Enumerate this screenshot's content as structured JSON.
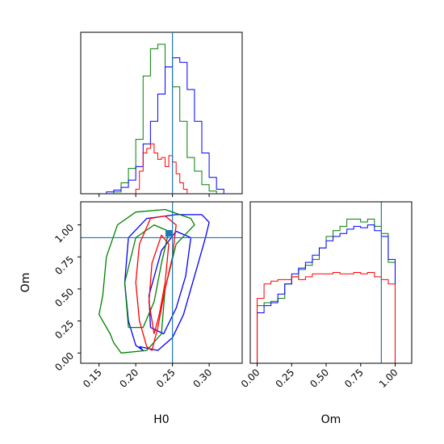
{
  "chart_data": {
    "type": "corner",
    "parameters": [
      "H0",
      "Om"
    ],
    "truth": {
      "H0": 0.25,
      "Om": 0.9
    },
    "colors": {
      "blue": "#0000ff",
      "green": "#008000",
      "red": "#ff0000",
      "truth": "#1f77b4"
    },
    "panels": {
      "h0_hist": {
        "xlim": [
          0.125,
          0.345
        ],
        "series": [
          {
            "color": "green",
            "bins": [
              0.17,
              0.18,
              0.19,
              0.2,
              0.21,
              0.22,
              0.23,
              0.24,
              0.25,
              0.26,
              0.27,
              0.28,
              0.29,
              0.3
            ],
            "heights": [
              2,
              12,
              28,
              60,
              130,
              160,
              165,
              140,
              118,
              80,
              40,
              25,
              10,
              3
            ]
          },
          {
            "color": "blue",
            "bins": [
              0.16,
              0.17,
              0.18,
              0.19,
              0.2,
              0.21,
              0.22,
              0.23,
              0.24,
              0.25,
              0.26,
              0.27,
              0.28,
              0.29,
              0.3,
              0.31
            ],
            "heights": [
              2,
              4,
              7,
              15,
              30,
              55,
              80,
              110,
              140,
              150,
              145,
              115,
              80,
              45,
              18,
              5
            ]
          },
          {
            "color": "red",
            "bins": [
              0.2,
              0.205,
              0.21,
              0.215,
              0.22,
              0.225,
              0.23,
              0.235,
              0.24,
              0.245,
              0.25,
              0.255,
              0.26,
              0.265
            ],
            "heights": [
              5,
              25,
              45,
              50,
              55,
              45,
              38,
              40,
              30,
              42,
              35,
              22,
              12,
              5
            ]
          }
        ]
      },
      "om_hist": {
        "xlim": [
          -0.05,
          1.12
        ],
        "xticks": [
          0.0,
          0.25,
          0.5,
          0.75,
          1.0
        ],
        "xticklabels": [
          "0.00",
          "0.25",
          "0.50",
          "0.75",
          "1.00"
        ],
        "xlabel": "Om",
        "series": [
          {
            "color": "green",
            "edges": [
              0,
              0.05,
              0.1,
              0.15,
              0.2,
              0.25,
              0.3,
              0.35,
              0.4,
              0.45,
              0.5,
              0.55,
              0.6,
              0.65,
              0.7,
              0.75,
              0.8,
              0.85,
              0.9,
              0.95,
              1.0
            ],
            "heights": [
              0.4,
              0.42,
              0.43,
              0.45,
              0.55,
              0.6,
              0.65,
              0.68,
              0.72,
              0.8,
              0.88,
              0.92,
              0.95,
              1.0,
              1.0,
              0.98,
              1.0,
              0.95,
              0.9,
              0.7
            ]
          },
          {
            "color": "blue",
            "edges": [
              0,
              0.05,
              0.1,
              0.15,
              0.2,
              0.25,
              0.3,
              0.35,
              0.4,
              0.45,
              0.5,
              0.55,
              0.6,
              0.65,
              0.7,
              0.75,
              0.8,
              0.85,
              0.9,
              0.95,
              1.0
            ],
            "heights": [
              0.35,
              0.4,
              0.42,
              0.48,
              0.55,
              0.62,
              0.66,
              0.7,
              0.75,
              0.8,
              0.85,
              0.88,
              0.9,
              0.93,
              0.95,
              0.94,
              0.96,
              0.92,
              0.88,
              0.72
            ]
          },
          {
            "color": "red",
            "edges": [
              0,
              0.05,
              0.1,
              0.15,
              0.2,
              0.25,
              0.3,
              0.35,
              0.4,
              0.45,
              0.5,
              0.55,
              0.6,
              0.65,
              0.7,
              0.75,
              0.8,
              0.85,
              0.9,
              0.95,
              1.0
            ],
            "heights": [
              0.45,
              0.55,
              0.57,
              0.58,
              0.58,
              0.6,
              0.58,
              0.6,
              0.62,
              0.62,
              0.62,
              0.63,
              0.62,
              0.62,
              0.63,
              0.62,
              0.63,
              0.6,
              0.58,
              0.55
            ]
          }
        ]
      },
      "joint": {
        "xlim": [
          0.125,
          0.345
        ],
        "ylim": [
          -0.08,
          1.18
        ],
        "xticks": [
          0.15,
          0.2,
          0.25,
          0.3
        ],
        "xticklabels": [
          "0.15",
          "0.20",
          "0.25",
          "0.30"
        ],
        "yticks": [
          0.0,
          0.25,
          0.5,
          0.75,
          1.0
        ],
        "yticklabels": [
          "0.00",
          "0.25",
          "0.50",
          "0.75",
          "1.00"
        ],
        "xlabel": "H0",
        "ylabel": "Om",
        "contours": [
          {
            "color": "blue",
            "points": [
              [
                0.205,
                0.05
              ],
              [
                0.21,
                0.02
              ],
              [
                0.2,
                0.06
              ],
              [
                0.19,
                0.25
              ],
              [
                0.185,
                0.55
              ],
              [
                0.19,
                0.9
              ],
              [
                0.215,
                1.05
              ],
              [
                0.255,
                1.08
              ],
              [
                0.29,
                1.08
              ],
              [
                0.3,
                1.02
              ],
              [
                0.295,
                0.9
              ],
              [
                0.285,
                0.7
              ],
              [
                0.275,
                0.5
              ],
              [
                0.265,
                0.3
              ],
              [
                0.25,
                0.12
              ],
              [
                0.23,
                0.02
              ],
              [
                0.205,
                0.05
              ]
            ]
          },
          {
            "color": "blue",
            "points": [
              [
                0.22,
                0.2
              ],
              [
                0.218,
                0.45
              ],
              [
                0.235,
                0.8
              ],
              [
                0.255,
                0.95
              ],
              [
                0.275,
                0.9
              ],
              [
                0.268,
                0.6
              ],
              [
                0.255,
                0.35
              ],
              [
                0.238,
                0.15
              ],
              [
                0.22,
                0.2
              ]
            ]
          },
          {
            "color": "green",
            "points": [
              [
                0.17,
                0.08
              ],
              [
                0.18,
                0.0
              ],
              [
                0.215,
                0.02
              ],
              [
                0.235,
                0.15
              ],
              [
                0.24,
                0.5
              ],
              [
                0.255,
                0.85
              ],
              [
                0.28,
                1.0
              ],
              [
                0.275,
                1.05
              ],
              [
                0.24,
                1.12
              ],
              [
                0.2,
                1.1
              ],
              [
                0.175,
                1.0
              ],
              [
                0.16,
                0.75
              ],
              [
                0.155,
                0.45
              ],
              [
                0.15,
                0.3
              ],
              [
                0.165,
                0.15
              ],
              [
                0.17,
                0.08
              ]
            ]
          },
          {
            "color": "green",
            "points": [
              [
                0.19,
                0.2
              ],
              [
                0.185,
                0.55
              ],
              [
                0.2,
                0.9
              ],
              [
                0.225,
                1.0
              ],
              [
                0.245,
                0.95
              ],
              [
                0.235,
                0.7
              ],
              [
                0.225,
                0.4
              ],
              [
                0.21,
                0.2
              ],
              [
                0.19,
                0.2
              ]
            ]
          },
          {
            "color": "red",
            "points": [
              [
                0.215,
                0.05
              ],
              [
                0.205,
                0.25
              ],
              [
                0.2,
                0.55
              ],
              [
                0.205,
                0.85
              ],
              [
                0.22,
                1.05
              ],
              [
                0.24,
                1.07
              ],
              [
                0.255,
                1.0
              ],
              [
                0.25,
                0.75
              ],
              [
                0.24,
                0.5
              ],
              [
                0.23,
                0.2
              ],
              [
                0.222,
                0.02
              ],
              [
                0.215,
                0.05
              ]
            ]
          },
          {
            "color": "red",
            "points": [
              [
                0.225,
                0.15
              ],
              [
                0.218,
                0.4
              ],
              [
                0.222,
                0.7
              ],
              [
                0.235,
                0.92
              ],
              [
                0.245,
                0.85
              ],
              [
                0.24,
                0.55
              ],
              [
                0.232,
                0.3
              ],
              [
                0.225,
                0.15
              ]
            ]
          }
        ]
      }
    }
  }
}
